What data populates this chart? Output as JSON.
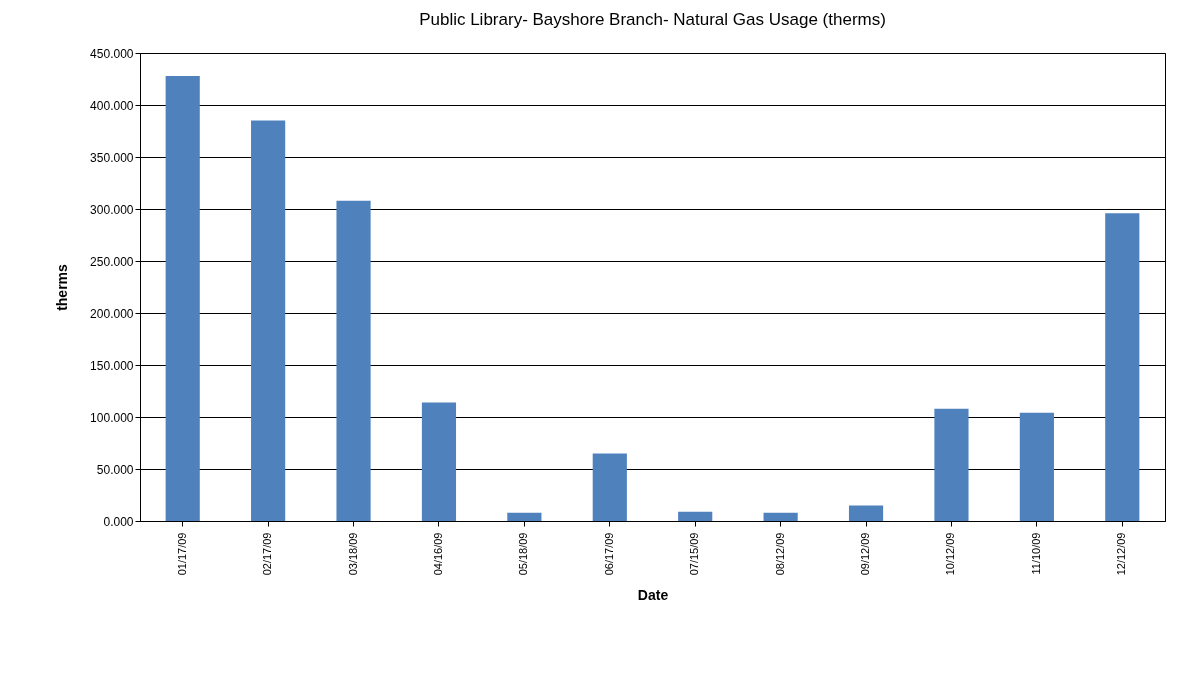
{
  "chart_data": {
    "type": "bar",
    "title": "Public Library- Bayshore Branch- Natural Gas Usage (therms)",
    "xlabel": "Date",
    "ylabel": "therms",
    "categories": [
      "01/17/09",
      "02/17/09",
      "03/18/09",
      "04/16/09",
      "05/18/09",
      "06/17/09",
      "07/15/09",
      "08/12/09",
      "09/12/09",
      "10/12/09",
      "11/10/09",
      "12/12/09"
    ],
    "values": [
      428,
      385,
      308,
      114,
      8,
      65,
      9,
      8,
      15,
      108,
      104,
      296
    ],
    "color": "#4f81bd",
    "ylim": [
      0,
      450
    ],
    "yticks": [
      {
        "value": 0,
        "label": "0.000"
      },
      {
        "value": 50,
        "label": "50.000"
      },
      {
        "value": 100,
        "label": "100.000"
      },
      {
        "value": 150,
        "label": "150.000"
      },
      {
        "value": 200,
        "label": "200.000"
      },
      {
        "value": 250,
        "label": "250.000"
      },
      {
        "value": 300,
        "label": "300.000"
      },
      {
        "value": 350,
        "label": "350.000"
      },
      {
        "value": 400,
        "label": "400.000"
      },
      {
        "value": 450,
        "label": "450.000"
      }
    ],
    "grid": "y"
  }
}
